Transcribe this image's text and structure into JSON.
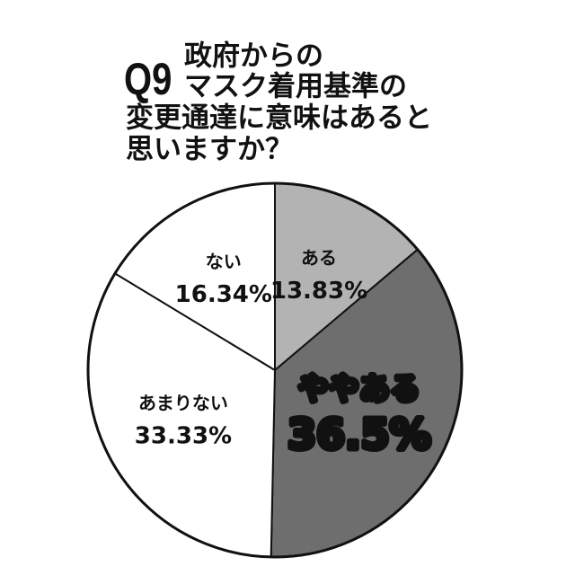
{
  "chart_data": {
    "type": "pie",
    "title_number": "Q9",
    "title_lines": [
      "政府からの",
      "マスク着用基準の",
      "変更通達に意味はあると",
      "思いますか？"
    ],
    "categories": [
      "ある",
      "ややある",
      "あまりない",
      "ない"
    ],
    "values": [
      13.83,
      36.5,
      33.33,
      16.34
    ],
    "value_labels": [
      "13.83%",
      "36.5%",
      "33.33%",
      "16.34%"
    ],
    "colors": [
      "#b3b3b3",
      "#6e6e6e",
      "#ffffff",
      "#ffffff"
    ]
  }
}
